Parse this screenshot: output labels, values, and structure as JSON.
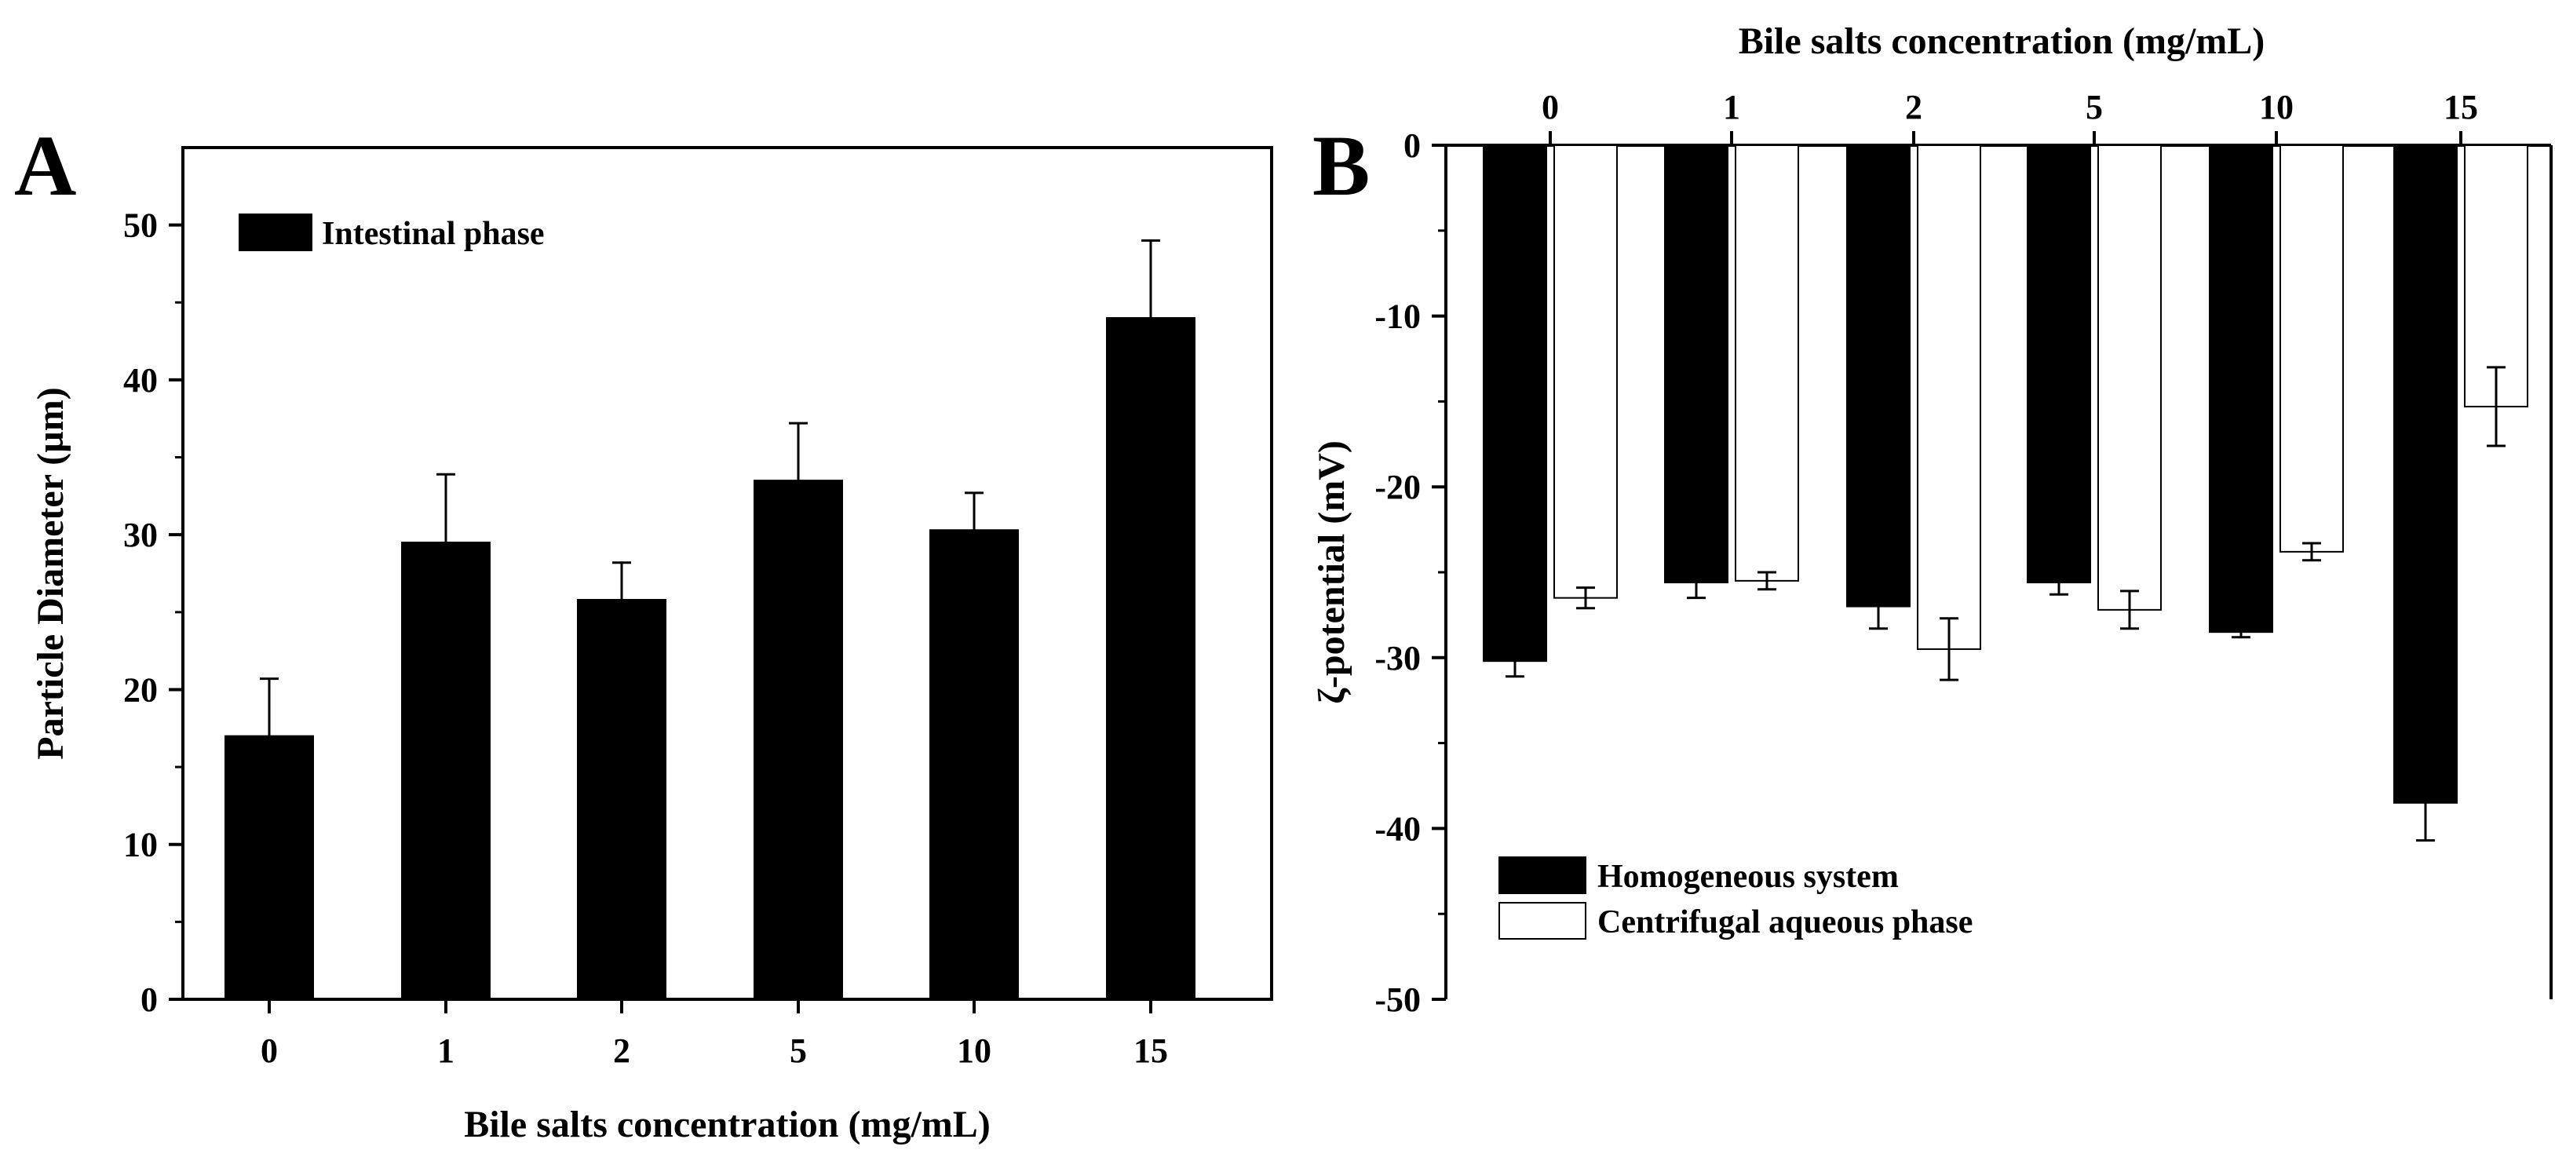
{
  "chart_data": [
    {
      "panel": "A",
      "type": "bar",
      "xlabel": "Bile salts concentration (mg/mL)",
      "ylabel": "Particle Diameter (µm)",
      "categories": [
        "0",
        "1",
        "2",
        "5",
        "10",
        "15"
      ],
      "ylim": [
        0,
        55
      ],
      "yticks": [
        "0",
        "10",
        "20",
        "30",
        "40",
        "50"
      ],
      "series": [
        {
          "name": "Intestinal phase",
          "fill": "#000000",
          "values": [
            17.0,
            29.5,
            25.8,
            33.5,
            30.3,
            44.0
          ],
          "errors": [
            3.7,
            4.4,
            2.4,
            3.7,
            2.4,
            5.0
          ]
        }
      ],
      "legend_position": "top-left",
      "grid": false
    },
    {
      "panel": "B",
      "type": "bar",
      "xlabel": "Bile salts concentration (mg/mL)",
      "ylabel": "ζ-potential (mV)",
      "categories": [
        "0",
        "1",
        "2",
        "5",
        "10",
        "15"
      ],
      "ylim": [
        -50,
        0
      ],
      "yticks": [
        "-50",
        "-40",
        "-30",
        "-20",
        "-10",
        "0"
      ],
      "series": [
        {
          "name": "Homogeneous system",
          "fill": "#000000",
          "values": [
            -30.2,
            -25.6,
            -27.0,
            -25.6,
            -28.5,
            -38.5
          ],
          "errors": [
            0.9,
            0.9,
            1.3,
            0.7,
            0.3,
            2.2
          ]
        },
        {
          "name": "Centrifugal aqueous phase",
          "fill": "#ffffff",
          "values": [
            -26.5,
            -25.5,
            -29.5,
            -27.2,
            -23.8,
            -15.3
          ],
          "errors": [
            0.6,
            0.5,
            1.8,
            1.1,
            0.5,
            2.3
          ]
        }
      ],
      "legend_position": "bottom-left",
      "x_axis_position": "top",
      "grid": false
    }
  ]
}
